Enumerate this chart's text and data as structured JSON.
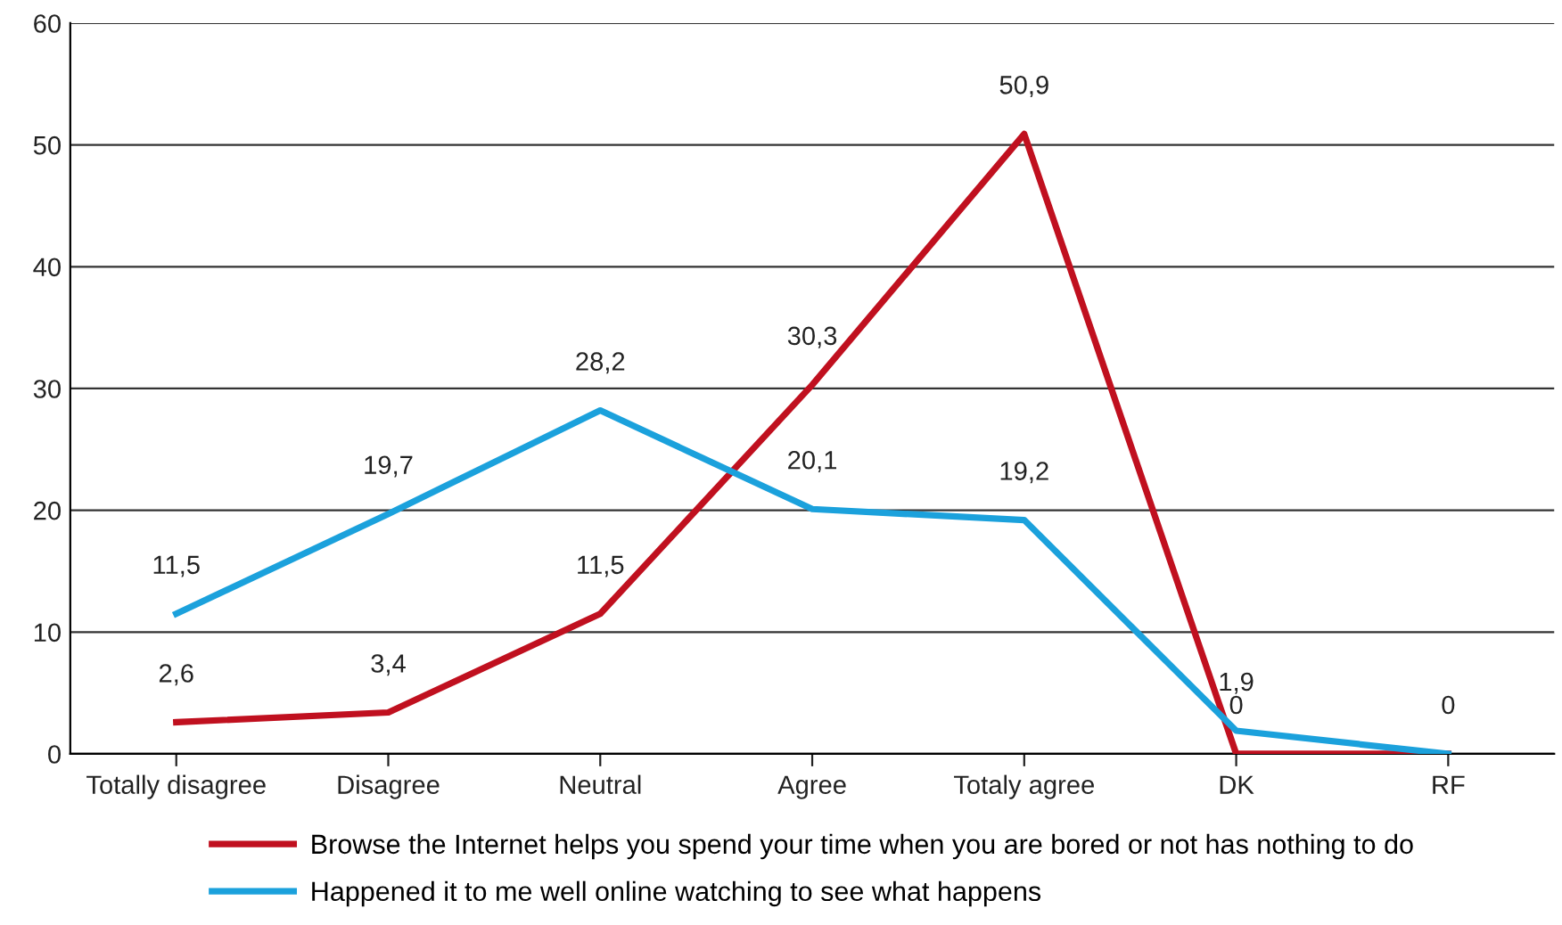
{
  "chart_data": {
    "type": "line",
    "categories": [
      "Totally disagree",
      "Disagree",
      "Neutral",
      "Agree",
      "Totaly agree",
      "DK",
      "RF"
    ],
    "series": [
      {
        "name": "Browse the Internet helps you spend your time when you are bored or not has nothing to do",
        "color": "#c0101f",
        "values": [
          2.6,
          3.4,
          11.5,
          30.3,
          50.9,
          0,
          0
        ],
        "value_labels": [
          "2,6",
          "3,4",
          "11,5",
          "30,3",
          "50,9",
          "0",
          "0"
        ]
      },
      {
        "name": "Happened it to me well online watching to see what happens",
        "color": "#1ba1dc",
        "values": [
          11.5,
          19.7,
          28.2,
          20.1,
          19.2,
          1.9,
          0
        ],
        "value_labels": [
          "11,5",
          "19,7",
          "28,2",
          "20,1",
          "19,2",
          "1,9",
          null
        ]
      }
    ],
    "ylim": [
      0,
      60
    ],
    "yticks": [
      0,
      10,
      20,
      30,
      40,
      50,
      60
    ],
    "grid": "y",
    "legend": "bottom",
    "marker": "none",
    "line_style": "solid"
  }
}
